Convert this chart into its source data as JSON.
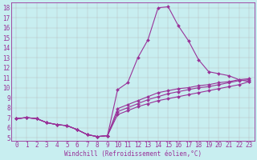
{
  "xlabel": "Windchill (Refroidissement éolien,°C)",
  "bg_color": "#c8eef0",
  "line_color": "#993399",
  "grid_color": "#b0b0b0",
  "xlim": [
    -0.5,
    23.5
  ],
  "ylim": [
    4.7,
    18.5
  ],
  "xticks": [
    0,
    1,
    2,
    3,
    4,
    5,
    6,
    7,
    8,
    9,
    10,
    11,
    12,
    13,
    14,
    15,
    16,
    17,
    18,
    19,
    20,
    21,
    22,
    23
  ],
  "yticks": [
    5,
    6,
    7,
    8,
    9,
    10,
    11,
    12,
    13,
    14,
    15,
    16,
    17,
    18
  ],
  "line1_x": [
    0,
    1,
    2,
    3,
    4,
    5,
    6,
    7,
    8,
    9,
    10,
    11,
    12,
    13,
    14,
    15,
    16,
    17,
    18,
    19,
    20,
    21,
    22,
    23
  ],
  "line1_y": [
    6.9,
    7.0,
    6.9,
    6.5,
    6.3,
    6.2,
    5.8,
    5.3,
    5.1,
    5.2,
    9.8,
    10.5,
    13.0,
    14.8,
    18.0,
    18.1,
    16.2,
    14.7,
    12.8,
    11.6,
    11.4,
    11.2,
    10.8,
    10.6
  ],
  "line2_x": [
    0,
    1,
    2,
    3,
    4,
    5,
    6,
    7,
    8,
    9,
    10,
    11,
    12,
    13,
    14,
    15,
    16,
    17,
    18,
    19,
    20,
    21,
    22,
    23
  ],
  "line2_y": [
    6.9,
    7.0,
    6.9,
    6.5,
    6.3,
    6.2,
    5.8,
    5.3,
    5.1,
    5.2,
    7.3,
    7.7,
    8.1,
    8.4,
    8.7,
    8.9,
    9.1,
    9.3,
    9.5,
    9.7,
    9.9,
    10.1,
    10.3,
    10.6
  ],
  "line3_x": [
    0,
    1,
    2,
    3,
    4,
    5,
    6,
    7,
    8,
    9,
    10,
    11,
    12,
    13,
    14,
    15,
    16,
    17,
    18,
    19,
    20,
    21,
    22,
    23
  ],
  "line3_y": [
    6.9,
    7.0,
    6.9,
    6.5,
    6.3,
    6.2,
    5.8,
    5.3,
    5.1,
    5.2,
    7.6,
    8.0,
    8.4,
    8.8,
    9.1,
    9.4,
    9.6,
    9.8,
    10.0,
    10.1,
    10.3,
    10.5,
    10.7,
    10.8
  ],
  "line4_x": [
    0,
    1,
    2,
    3,
    4,
    5,
    6,
    7,
    8,
    9,
    10,
    11,
    12,
    13,
    14,
    15,
    16,
    17,
    18,
    19,
    20,
    21,
    22,
    23
  ],
  "line4_y": [
    6.9,
    7.0,
    6.9,
    6.5,
    6.3,
    6.2,
    5.8,
    5.3,
    5.1,
    5.2,
    7.9,
    8.3,
    8.7,
    9.1,
    9.5,
    9.7,
    9.9,
    10.0,
    10.2,
    10.3,
    10.5,
    10.6,
    10.8,
    10.9
  ],
  "tick_fontsize": 5.5,
  "xlabel_fontsize": 5.5,
  "marker_size": 2.0,
  "line_width": 0.8
}
